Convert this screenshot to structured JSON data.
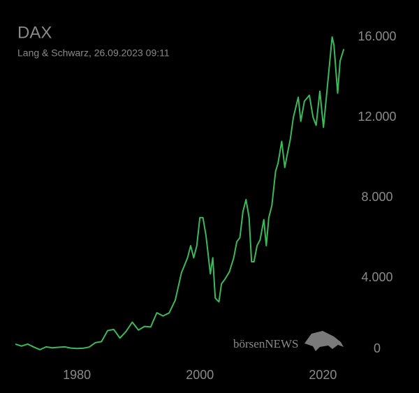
{
  "chart_data": {
    "type": "line",
    "title": "DAX",
    "subtitle": "Lang & Schwarz, 26.09.2023 09:11",
    "watermark": "börsenNEWS",
    "x": [
      1970,
      1971,
      1972,
      1973,
      1974,
      1975,
      1976,
      1977,
      1978,
      1979,
      1980,
      1981,
      1982,
      1983,
      1984,
      1985,
      1986,
      1987,
      1988,
      1989,
      1990,
      1991,
      1992,
      1993,
      1994,
      1995,
      1996,
      1997,
      1998,
      1998.5,
      1999,
      1999.5,
      2000,
      2000.5,
      2001,
      2001.7,
      2002.1,
      2002.5,
      2003.1,
      2003.5,
      2004,
      2004.8,
      2005.5,
      2006,
      2006.5,
      2007,
      2007.5,
      2008,
      2008.4,
      2008.8,
      2009.3,
      2009.8,
      2010.4,
      2010.8,
      2011.2,
      2011.7,
      2012.3,
      2012.7,
      2013.3,
      2013.8,
      2014.3,
      2014.7,
      2015.2,
      2015.6,
      2016,
      2016.4,
      2017,
      2017.8,
      2018.4,
      2018.9,
      2019.5,
      2020.1,
      2021.5,
      2021.8,
      2022.4,
      2022.8,
      2023.4
    ],
    "series": [
      {
        "name": "DAX",
        "color": "#3cb95a",
        "values": [
          700,
          600,
          700,
          550,
          420,
          560,
          510,
          540,
          560,
          500,
          480,
          490,
          550,
          770,
          820,
          1370,
          1430,
          1000,
          1330,
          1790,
          1400,
          1580,
          1550,
          2260,
          2100,
          2250,
          2890,
          4250,
          5000,
          5600,
          5000,
          5600,
          7000,
          7000,
          6100,
          4200,
          5000,
          3000,
          2800,
          3700,
          3900,
          4300,
          5000,
          5800,
          6000,
          7300,
          7900,
          7000,
          4800,
          4800,
          5600,
          5900,
          6900,
          5600,
          7000,
          7600,
          9300,
          9700,
          10800,
          9500,
          10300,
          10900,
          12000,
          12500,
          13000,
          11800,
          12800,
          13100,
          12000,
          11600,
          13300,
          11500,
          16000,
          15600,
          13200,
          14800,
          15400
        ]
      }
    ],
    "xlim": [
      1967.5,
      2024.5
    ],
    "xticks": [
      1980,
      2000,
      2020
    ],
    "ylim": [
      0,
      16000
    ],
    "yticks": [
      0,
      {
        "value": 4000,
        "label": "4.000"
      },
      {
        "value": 8000,
        "label": "8.000"
      },
      {
        "value": 12000,
        "label": "12.000"
      },
      {
        "value": 16000,
        "label": "16.000"
      }
    ],
    "grid": false
  }
}
